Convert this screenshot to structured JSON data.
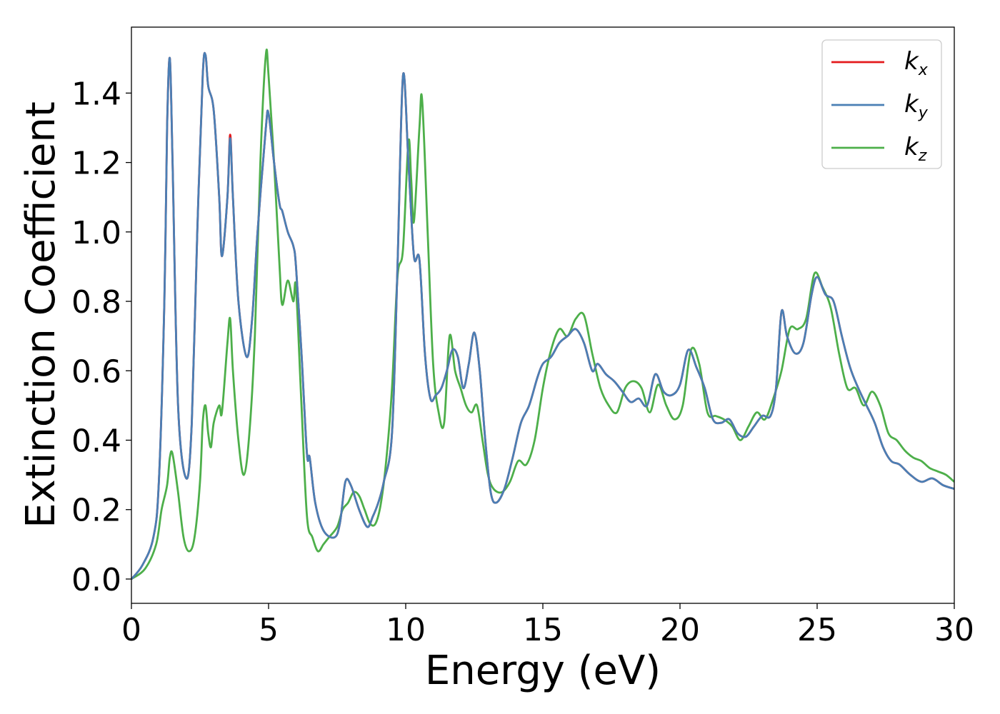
{
  "chart_data": {
    "type": "line",
    "xlabel": "Energy (eV)",
    "ylabel": "Extinction Coefficient",
    "xlim": [
      0,
      30
    ],
    "ylim": [
      -0.07,
      1.59
    ],
    "xticks": [
      0,
      5,
      10,
      15,
      20,
      25,
      30
    ],
    "xtick_labels": [
      "0",
      "5",
      "10",
      "15",
      "20",
      "25",
      "30"
    ],
    "yticks": [
      0.0,
      0.2,
      0.4,
      0.6,
      0.8,
      1.0,
      1.2,
      1.4
    ],
    "ytick_labels": [
      "0.0",
      "0.2",
      "0.4",
      "0.6",
      "0.8",
      "1.0",
      "1.2",
      "1.4"
    ],
    "grid": false,
    "legend_position": "top-right",
    "series": [
      {
        "name": "k",
        "subscript": "x",
        "color": "#e41a1c",
        "x": [
          0,
          0.4,
          0.8,
          1.0,
          1.2,
          1.3,
          1.4,
          1.5,
          1.7,
          2.0,
          2.2,
          2.4,
          2.6,
          2.7,
          2.8,
          3.0,
          3.2,
          3.3,
          3.5,
          3.6,
          3.7,
          3.9,
          4.2,
          4.4,
          4.6,
          4.9,
          5.0,
          5.2,
          5.4,
          5.5,
          5.7,
          5.9,
          6.0,
          6.2,
          6.4,
          6.5,
          6.7,
          7.0,
          7.4,
          7.6,
          7.8,
          8.0,
          8.3,
          8.6,
          8.8,
          9.0,
          9.2,
          9.5,
          9.7,
          9.9,
          10.1,
          10.3,
          10.5,
          10.7,
          10.9,
          11.1,
          11.3,
          11.5,
          11.7,
          11.9,
          12.1,
          12.3,
          12.5,
          12.7,
          12.9,
          13.1,
          13.3,
          13.6,
          13.9,
          14.2,
          14.5,
          14.8,
          15.0,
          15.3,
          15.6,
          15.9,
          16.2,
          16.5,
          16.8,
          17.0,
          17.3,
          17.6,
          17.9,
          18.2,
          18.5,
          18.8,
          19.1,
          19.4,
          19.7,
          20.0,
          20.3,
          20.6,
          20.9,
          21.2,
          21.5,
          21.8,
          22.1,
          22.4,
          22.7,
          23.0,
          23.3,
          23.5,
          23.7,
          23.9,
          24.2,
          24.5,
          24.8,
          25.0,
          25.3,
          25.6,
          25.9,
          26.2,
          26.5,
          26.8,
          27.1,
          27.4,
          27.7,
          28.0,
          28.4,
          28.8,
          29.2,
          29.6,
          30.0
        ],
        "values": [
          0.0,
          0.04,
          0.12,
          0.28,
          0.8,
          1.3,
          1.5,
          1.2,
          0.5,
          0.29,
          0.45,
          1.0,
          1.45,
          1.51,
          1.42,
          1.35,
          1.1,
          0.93,
          1.1,
          1.28,
          1.1,
          0.8,
          0.64,
          0.75,
          1.0,
          1.3,
          1.34,
          1.2,
          1.08,
          1.06,
          1.0,
          0.96,
          0.9,
          0.65,
          0.36,
          0.35,
          0.22,
          0.14,
          0.12,
          0.16,
          0.28,
          0.27,
          0.2,
          0.15,
          0.18,
          0.22,
          0.28,
          0.42,
          0.9,
          1.45,
          1.2,
          0.93,
          0.92,
          0.65,
          0.52,
          0.53,
          0.55,
          0.6,
          0.66,
          0.64,
          0.55,
          0.62,
          0.71,
          0.6,
          0.4,
          0.25,
          0.22,
          0.26,
          0.35,
          0.45,
          0.5,
          0.58,
          0.62,
          0.64,
          0.68,
          0.7,
          0.72,
          0.68,
          0.6,
          0.62,
          0.59,
          0.57,
          0.54,
          0.51,
          0.52,
          0.5,
          0.59,
          0.54,
          0.53,
          0.56,
          0.66,
          0.61,
          0.55,
          0.46,
          0.45,
          0.46,
          0.42,
          0.41,
          0.44,
          0.47,
          0.47,
          0.55,
          0.77,
          0.7,
          0.65,
          0.68,
          0.82,
          0.87,
          0.82,
          0.8,
          0.7,
          0.61,
          0.55,
          0.5,
          0.45,
          0.38,
          0.34,
          0.33,
          0.3,
          0.28,
          0.29,
          0.27,
          0.26
        ]
      },
      {
        "name": "k",
        "subscript": "y",
        "color": "#4a7fb5",
        "x": [
          0,
          0.4,
          0.8,
          1.0,
          1.2,
          1.3,
          1.4,
          1.5,
          1.7,
          2.0,
          2.2,
          2.4,
          2.6,
          2.7,
          2.8,
          3.0,
          3.2,
          3.3,
          3.5,
          3.6,
          3.7,
          3.9,
          4.2,
          4.4,
          4.6,
          4.9,
          5.0,
          5.2,
          5.4,
          5.5,
          5.7,
          5.9,
          6.0,
          6.2,
          6.4,
          6.5,
          6.7,
          7.0,
          7.4,
          7.6,
          7.8,
          8.0,
          8.3,
          8.6,
          8.8,
          9.0,
          9.2,
          9.5,
          9.7,
          9.9,
          10.1,
          10.3,
          10.5,
          10.7,
          10.9,
          11.1,
          11.3,
          11.5,
          11.7,
          11.9,
          12.1,
          12.3,
          12.5,
          12.7,
          12.9,
          13.1,
          13.3,
          13.6,
          13.9,
          14.2,
          14.5,
          14.8,
          15.0,
          15.3,
          15.6,
          15.9,
          16.2,
          16.5,
          16.8,
          17.0,
          17.3,
          17.6,
          17.9,
          18.2,
          18.5,
          18.8,
          19.1,
          19.4,
          19.7,
          20.0,
          20.3,
          20.6,
          20.9,
          21.2,
          21.5,
          21.8,
          22.1,
          22.4,
          22.7,
          23.0,
          23.3,
          23.5,
          23.7,
          23.9,
          24.2,
          24.5,
          24.8,
          25.0,
          25.3,
          25.6,
          25.9,
          26.2,
          26.5,
          26.8,
          27.1,
          27.4,
          27.7,
          28.0,
          28.4,
          28.8,
          29.2,
          29.6,
          30.0
        ],
        "values": [
          0.0,
          0.04,
          0.12,
          0.28,
          0.8,
          1.3,
          1.5,
          1.2,
          0.5,
          0.29,
          0.45,
          1.0,
          1.45,
          1.51,
          1.42,
          1.35,
          1.1,
          0.93,
          1.1,
          1.27,
          1.1,
          0.8,
          0.64,
          0.75,
          1.0,
          1.3,
          1.34,
          1.2,
          1.08,
          1.06,
          1.0,
          0.96,
          0.9,
          0.65,
          0.36,
          0.35,
          0.22,
          0.14,
          0.12,
          0.16,
          0.28,
          0.27,
          0.2,
          0.15,
          0.18,
          0.22,
          0.28,
          0.42,
          0.9,
          1.45,
          1.2,
          0.93,
          0.92,
          0.65,
          0.52,
          0.53,
          0.55,
          0.6,
          0.66,
          0.64,
          0.55,
          0.62,
          0.71,
          0.6,
          0.4,
          0.25,
          0.22,
          0.26,
          0.35,
          0.45,
          0.5,
          0.58,
          0.62,
          0.64,
          0.68,
          0.7,
          0.72,
          0.68,
          0.6,
          0.62,
          0.59,
          0.57,
          0.54,
          0.51,
          0.52,
          0.5,
          0.59,
          0.54,
          0.53,
          0.56,
          0.66,
          0.61,
          0.55,
          0.46,
          0.45,
          0.46,
          0.42,
          0.41,
          0.44,
          0.47,
          0.47,
          0.55,
          0.77,
          0.7,
          0.65,
          0.68,
          0.82,
          0.87,
          0.82,
          0.8,
          0.7,
          0.61,
          0.55,
          0.5,
          0.45,
          0.38,
          0.34,
          0.33,
          0.3,
          0.28,
          0.29,
          0.27,
          0.26
        ]
      },
      {
        "name": "k",
        "subscript": "z",
        "color": "#4daf4a",
        "x": [
          0,
          0.5,
          0.9,
          1.1,
          1.3,
          1.4,
          1.5,
          1.7,
          1.9,
          2.1,
          2.3,
          2.5,
          2.6,
          2.7,
          2.8,
          2.9,
          3.0,
          3.2,
          3.3,
          3.5,
          3.6,
          3.7,
          3.9,
          4.1,
          4.3,
          4.5,
          4.7,
          4.9,
          5.0,
          5.2,
          5.4,
          5.5,
          5.7,
          5.9,
          6.0,
          6.2,
          6.4,
          6.6,
          6.8,
          7.0,
          7.2,
          7.5,
          7.7,
          7.9,
          8.1,
          8.3,
          8.5,
          8.7,
          8.9,
          9.1,
          9.3,
          9.5,
          9.7,
          9.9,
          10.1,
          10.2,
          10.3,
          10.5,
          10.6,
          10.8,
          11.0,
          11.2,
          11.4,
          11.6,
          11.8,
          12.0,
          12.2,
          12.4,
          12.6,
          12.8,
          13.0,
          13.2,
          13.5,
          13.8,
          14.1,
          14.4,
          14.7,
          15.0,
          15.3,
          15.6,
          15.9,
          16.2,
          16.5,
          16.8,
          17.1,
          17.4,
          17.7,
          18.0,
          18.3,
          18.6,
          18.9,
          19.2,
          19.5,
          19.8,
          20.1,
          20.4,
          20.7,
          21.0,
          21.3,
          21.6,
          21.9,
          22.2,
          22.5,
          22.8,
          23.1,
          23.4,
          23.7,
          24.0,
          24.3,
          24.6,
          24.9,
          25.2,
          25.5,
          25.8,
          26.1,
          26.4,
          26.7,
          27.0,
          27.3,
          27.6,
          27.9,
          28.2,
          28.5,
          28.8,
          29.1,
          29.4,
          29.7,
          30.0
        ],
        "values": [
          0.0,
          0.03,
          0.1,
          0.2,
          0.27,
          0.35,
          0.36,
          0.25,
          0.12,
          0.08,
          0.12,
          0.28,
          0.45,
          0.5,
          0.42,
          0.38,
          0.45,
          0.5,
          0.48,
          0.68,
          0.75,
          0.6,
          0.4,
          0.3,
          0.42,
          0.7,
          1.2,
          1.51,
          1.45,
          1.2,
          0.9,
          0.79,
          0.86,
          0.8,
          0.84,
          0.5,
          0.18,
          0.12,
          0.08,
          0.1,
          0.12,
          0.15,
          0.2,
          0.22,
          0.25,
          0.24,
          0.2,
          0.16,
          0.16,
          0.22,
          0.35,
          0.55,
          0.87,
          0.95,
          1.26,
          1.15,
          1.03,
          1.3,
          1.38,
          1.0,
          0.62,
          0.48,
          0.45,
          0.7,
          0.6,
          0.55,
          0.5,
          0.48,
          0.5,
          0.4,
          0.3,
          0.26,
          0.25,
          0.28,
          0.34,
          0.33,
          0.4,
          0.55,
          0.66,
          0.72,
          0.7,
          0.75,
          0.76,
          0.65,
          0.55,
          0.5,
          0.48,
          0.55,
          0.57,
          0.55,
          0.48,
          0.56,
          0.5,
          0.46,
          0.5,
          0.66,
          0.62,
          0.48,
          0.47,
          0.46,
          0.44,
          0.4,
          0.44,
          0.48,
          0.46,
          0.52,
          0.6,
          0.72,
          0.72,
          0.75,
          0.88,
          0.84,
          0.78,
          0.65,
          0.55,
          0.55,
          0.5,
          0.54,
          0.5,
          0.42,
          0.4,
          0.37,
          0.35,
          0.34,
          0.32,
          0.31,
          0.3,
          0.28
        ]
      }
    ]
  }
}
